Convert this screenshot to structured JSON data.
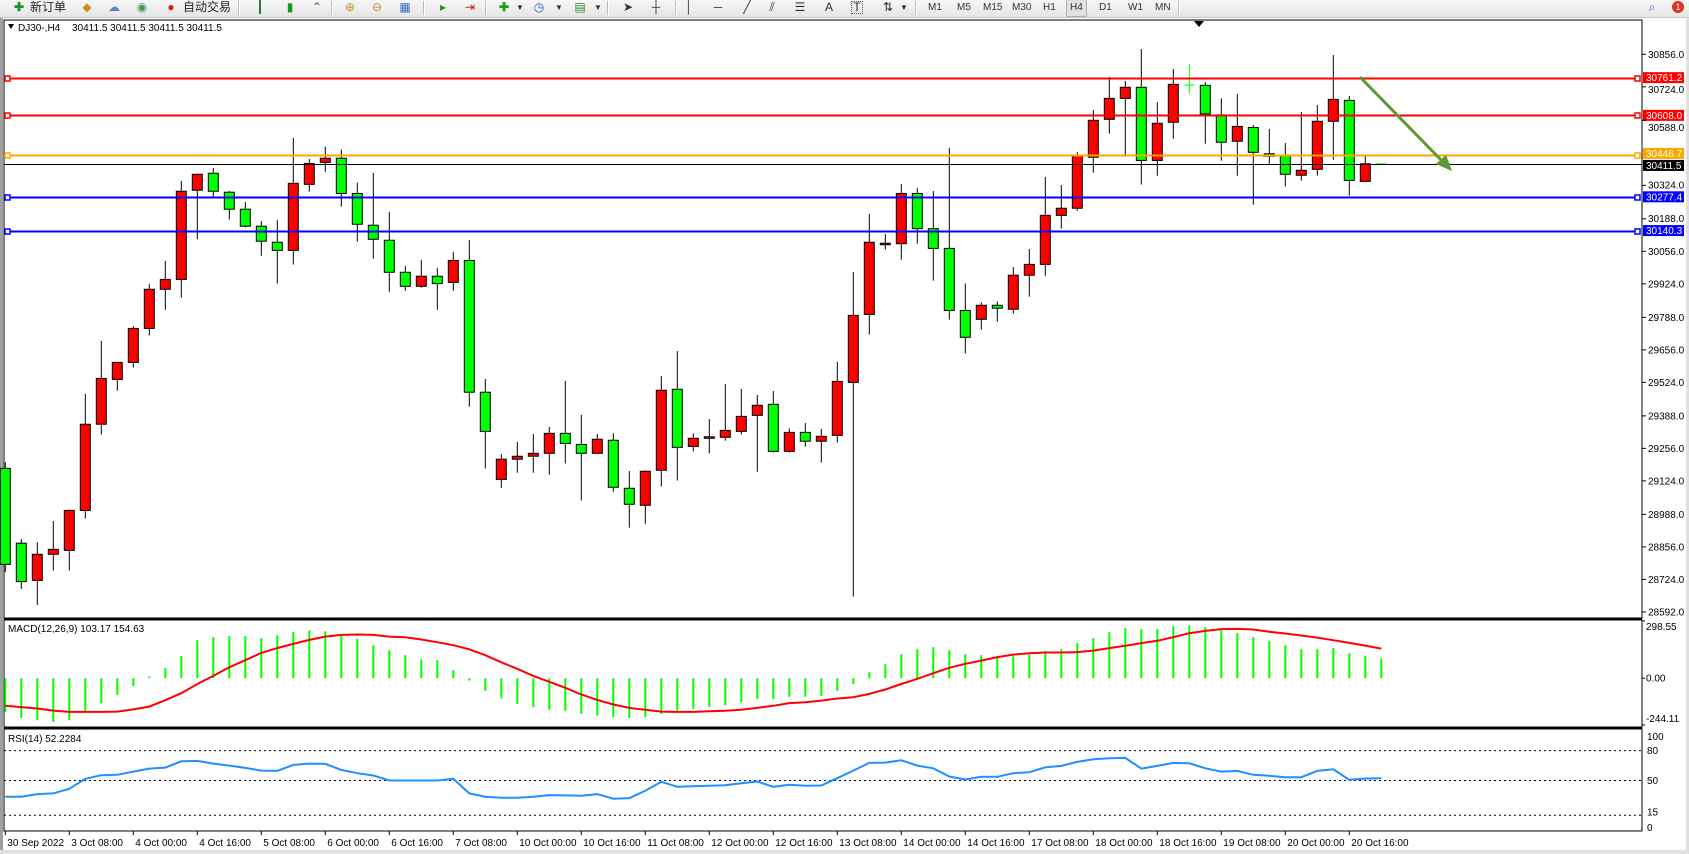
{
  "toolbar": {
    "new_order": "新订单",
    "auto_trading": "自动交易",
    "timeframes": [
      "M1",
      "M5",
      "M15",
      "M30",
      "H1",
      "H4",
      "D1",
      "W1",
      "MN"
    ],
    "active_timeframe": "H4",
    "notification_count": "1"
  },
  "chart": {
    "symbol": "DJ30-,H4",
    "ohlc_text": "30411.5 30411.5 30411.5 30411.5",
    "bull_color": "#ff0000",
    "bear_color": "#00ff00",
    "doji_color": "#00ff00",
    "price_ticks": [
      "30856.0",
      "30724.0",
      "30588.0",
      "30324.0",
      "30188.0",
      "30056.0",
      "29924.0",
      "29788.0",
      "29656.0",
      "29524.0",
      "29388.0",
      "29256.0",
      "29124.0",
      "28988.0",
      "28856.0",
      "28724.0",
      "28592.0"
    ],
    "levels": [
      {
        "price": 30761.2,
        "label": "30761.2",
        "color": "#ff0000"
      },
      {
        "price": 30608.0,
        "label": "30608.0",
        "color": "#ff0000"
      },
      {
        "price": 30446.7,
        "label": "30446.7",
        "color": "#ffa500"
      },
      {
        "price": 30277.4,
        "label": "30277.4",
        "color": "#0000ff"
      },
      {
        "price": 30140.3,
        "label": "30140.3",
        "color": "#0000ff"
      }
    ],
    "bid": {
      "price": 30411.5,
      "label": "30411.5",
      "color": "#000000"
    },
    "trend_arrow_color": "#5a9a32",
    "time_labels": [
      "30 Sep 2022",
      "3 Oct 08:00",
      "4 Oct 00:00",
      "4 Oct 16:00",
      "5 Oct 08:00",
      "6 Oct 00:00",
      "6 Oct 16:00",
      "7 Oct 08:00",
      "10 Oct 00:00",
      "10 Oct 16:00",
      "11 Oct 08:00",
      "12 Oct 00:00",
      "12 Oct 16:00",
      "13 Oct 08:00",
      "14 Oct 00:00",
      "14 Oct 16:00",
      "17 Oct 08:00",
      "18 Oct 00:00",
      "18 Oct 16:00",
      "19 Oct 08:00",
      "20 Oct 00:00",
      "20 Oct 16:00"
    ]
  },
  "chart_data": {
    "type": "candlestick",
    "ohlc_order": [
      "open",
      "high",
      "low",
      "close"
    ],
    "ylim": [
      28592,
      30856
    ],
    "candles": [
      [
        29175,
        29200,
        28753,
        28785
      ],
      [
        28871,
        28888,
        28685,
        28715
      ],
      [
        28720,
        28875,
        28620,
        28826
      ],
      [
        28826,
        28961,
        28760,
        28846
      ],
      [
        28842,
        29008,
        28760,
        29004
      ],
      [
        29004,
        29477,
        28971,
        29354
      ],
      [
        29354,
        29692,
        29312,
        29540
      ],
      [
        29536,
        29605,
        29490,
        29605
      ],
      [
        29605,
        29753,
        29584,
        29743
      ],
      [
        29743,
        29923,
        29714,
        29902
      ],
      [
        29902,
        30017,
        29819,
        29942
      ],
      [
        29942,
        30342,
        29868,
        30300
      ],
      [
        30304,
        30369,
        30105,
        30369
      ],
      [
        30373,
        30394,
        30270,
        30300
      ],
      [
        30296,
        30301,
        30185,
        30227
      ],
      [
        30227,
        30256,
        30153,
        30158
      ],
      [
        30158,
        30179,
        30038,
        30097
      ],
      [
        30093,
        30183,
        29925,
        30060
      ],
      [
        30060,
        30516,
        30002,
        30332
      ],
      [
        30328,
        30431,
        30298,
        30413
      ],
      [
        30417,
        30481,
        30379,
        30434
      ],
      [
        30434,
        30470,
        30237,
        30291
      ],
      [
        30291,
        30335,
        30095,
        30166
      ],
      [
        30162,
        30374,
        30026,
        30105
      ],
      [
        30101,
        30216,
        29892,
        29971
      ],
      [
        29971,
        29996,
        29896,
        29914
      ],
      [
        29914,
        30021,
        29908,
        29955
      ],
      [
        29955,
        29988,
        29819,
        29925
      ],
      [
        29930,
        30053,
        29896,
        30019
      ],
      [
        30019,
        30102,
        29425,
        29484
      ],
      [
        29484,
        29538,
        29174,
        29325
      ],
      [
        29130,
        29233,
        29096,
        29212
      ],
      [
        29212,
        29282,
        29157,
        29224
      ],
      [
        29224,
        29314,
        29157,
        29236
      ],
      [
        29236,
        29343,
        29149,
        29317
      ],
      [
        29317,
        29530,
        29195,
        29276
      ],
      [
        29272,
        29392,
        29044,
        29236
      ],
      [
        29236,
        29314,
        29236,
        29293
      ],
      [
        29289,
        29317,
        29080,
        29098
      ],
      [
        29094,
        29164,
        28934,
        29029
      ],
      [
        29025,
        29167,
        28950,
        29163
      ],
      [
        29167,
        29550,
        29101,
        29492
      ],
      [
        29496,
        29651,
        29125,
        29260
      ],
      [
        29264,
        29317,
        29244,
        29297
      ],
      [
        29301,
        29375,
        29236,
        29303
      ],
      [
        29301,
        29517,
        29287,
        29329
      ],
      [
        29325,
        29497,
        29312,
        29386
      ],
      [
        29390,
        29473,
        29161,
        29431
      ],
      [
        29435,
        29489,
        29239,
        29244
      ],
      [
        29244,
        29337,
        29239,
        29321
      ],
      [
        29321,
        29359,
        29263,
        29285
      ],
      [
        29285,
        29335,
        29198,
        29305
      ],
      [
        29309,
        29607,
        29279,
        29528
      ],
      [
        29524,
        29972,
        28654,
        29796
      ],
      [
        29800,
        30208,
        29718,
        30093
      ],
      [
        30087,
        30126,
        30063,
        30089
      ],
      [
        30087,
        30329,
        30022,
        30291
      ],
      [
        30291,
        30313,
        30087,
        30148
      ],
      [
        30148,
        30301,
        29937,
        30068
      ],
      [
        30068,
        30476,
        29779,
        29816
      ],
      [
        29816,
        29926,
        29641,
        29707
      ],
      [
        29780,
        29849,
        29738,
        29837
      ],
      [
        29837,
        29853,
        29770,
        29825
      ],
      [
        29821,
        29992,
        29803,
        29959
      ],
      [
        29959,
        30065,
        29872,
        30003
      ],
      [
        30003,
        30358,
        29957,
        30202
      ],
      [
        30202,
        30325,
        30148,
        30231
      ],
      [
        30231,
        30459,
        30221,
        30443
      ],
      [
        30438,
        30630,
        30375,
        30588
      ],
      [
        30592,
        30764,
        30534,
        30677
      ],
      [
        30677,
        30748,
        30440,
        30722
      ],
      [
        30722,
        30877,
        30327,
        30425
      ],
      [
        30425,
        30662,
        30363,
        30576
      ],
      [
        30580,
        30796,
        30513,
        30734
      ],
      [
        30731,
        30817,
        30697,
        30731
      ],
      [
        30730,
        30743,
        30493,
        30614
      ],
      [
        30610,
        30677,
        30424,
        30499
      ],
      [
        30503,
        30695,
        30363,
        30563
      ],
      [
        30559,
        30569,
        30245,
        30458
      ],
      [
        30452,
        30553,
        30411,
        30442
      ],
      [
        30443,
        30496,
        30319,
        30369
      ],
      [
        30365,
        30622,
        30343,
        30385
      ],
      [
        30389,
        30650,
        30363,
        30584
      ],
      [
        30584,
        30853,
        30428,
        30673
      ],
      [
        30669,
        30687,
        30282,
        30344
      ],
      [
        30340,
        30444,
        30340,
        30411.5
      ],
      [
        30411.5,
        30411.5,
        30411.5,
        30411.5
      ]
    ],
    "macd": {
      "label": "MACD(12,26,9) 103.17 154.63",
      "ylim": [
        -244.11,
        298.55
      ],
      "tick_labels": [
        "298.55",
        "0.00",
        "-244.11"
      ],
      "histogram_color": "#00ff00",
      "signal_color": "#ff0000",
      "histogram": [
        -177,
        -207,
        -219,
        -228,
        -219,
        -174,
        -130,
        -87,
        -42,
        9,
        52,
        115,
        198,
        214,
        219,
        219,
        209,
        224,
        242,
        250,
        245,
        226,
        205,
        172,
        146,
        120,
        99,
        94,
        42,
        -12,
        -66,
        -106,
        -134,
        -151,
        -165,
        -170,
        -186,
        -195,
        -203,
        -207,
        -203,
        -186,
        -169,
        -160,
        -150,
        -141,
        -125,
        -108,
        -108,
        -97,
        -97,
        -92,
        -66,
        -31,
        31,
        73,
        125,
        151,
        162,
        146,
        125,
        120,
        115,
        115,
        122,
        141,
        151,
        183,
        209,
        240,
        261,
        256,
        256,
        271,
        277,
        266,
        249,
        235,
        214,
        193,
        172,
        151,
        151,
        157,
        130,
        115,
        103.17
      ],
      "signal": [
        -144,
        -151,
        -158,
        -169,
        -176,
        -176,
        -176,
        -174,
        -163,
        -148,
        -115,
        -78,
        -30,
        12,
        57,
        94,
        132,
        157,
        179,
        200,
        217,
        226,
        228,
        226,
        217,
        214,
        202,
        188,
        172,
        151,
        120,
        83,
        49,
        12,
        -19,
        -50,
        -85,
        -113,
        -137,
        -155,
        -165,
        -174,
        -176,
        -176,
        -172,
        -170,
        -165,
        -155,
        -144,
        -130,
        -125,
        -117,
        -106,
        -99,
        -82,
        -59,
        -30,
        -3,
        26,
        54,
        75,
        92,
        110,
        123,
        130,
        134,
        134,
        136,
        144,
        157,
        169,
        183,
        195,
        214,
        235,
        247,
        256,
        257,
        254,
        242,
        233,
        223,
        212,
        198,
        184,
        170,
        154.63
      ]
    },
    "rsi": {
      "label": "RSI(14) 52.2284",
      "ylim": [
        0,
        100
      ],
      "levels": [
        80,
        50,
        15
      ],
      "tick_labels": [
        "100",
        "80",
        "50",
        "15",
        "0"
      ],
      "color": "#1e90ff",
      "values": [
        33.7,
        33.7,
        36.3,
        37,
        41.7,
        51.7,
        55.3,
        55.7,
        59,
        62,
        63,
        69.3,
        69.7,
        67,
        65,
        62.7,
        60,
        59.7,
        65.7,
        67,
        66.7,
        60.7,
        57.3,
        55,
        50,
        50,
        50,
        50,
        51.7,
        37,
        33.7,
        32.7,
        32.7,
        33.7,
        35.3,
        35,
        34.7,
        36.3,
        31.7,
        32.3,
        39.7,
        48.7,
        43.7,
        44.3,
        44.7,
        45.3,
        47.3,
        49,
        43.7,
        45.7,
        44.7,
        45,
        52.3,
        60,
        67.7,
        68,
        70.3,
        65,
        62.3,
        54,
        51,
        53.7,
        53.7,
        57.3,
        58.3,
        63.3,
        64.7,
        68.7,
        71.3,
        72.3,
        72.7,
        62,
        64.7,
        67.7,
        67.3,
        62.3,
        59,
        59.7,
        55.7,
        54.7,
        53.3,
        53.3,
        59.7,
        61.3,
        50.7,
        52,
        52.2284
      ]
    }
  }
}
